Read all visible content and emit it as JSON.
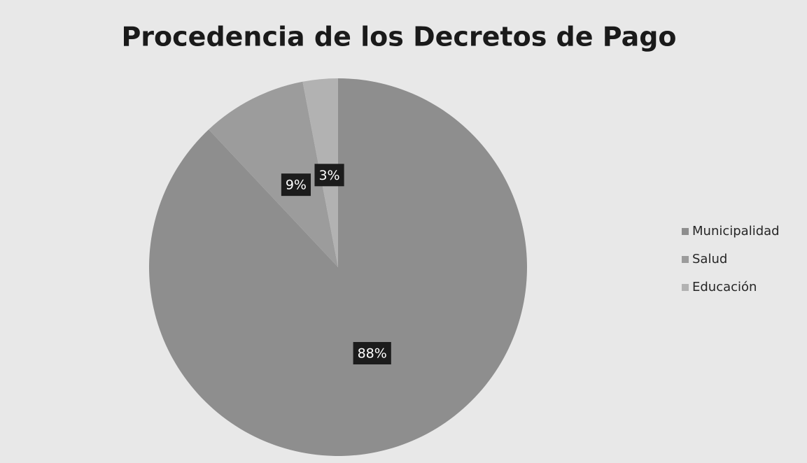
{
  "chart_data": {
    "type": "pie",
    "title": "Procedencia de los Decretos de Pago",
    "categories": [
      "Municipalidad",
      "Salud",
      "Educación"
    ],
    "values": [
      88,
      9,
      3
    ],
    "value_labels": [
      "88%",
      "9%",
      "3%"
    ],
    "colors": [
      "#8e8e8e",
      "#9c9c9c",
      "#b2b2b2"
    ],
    "legend": "right"
  }
}
